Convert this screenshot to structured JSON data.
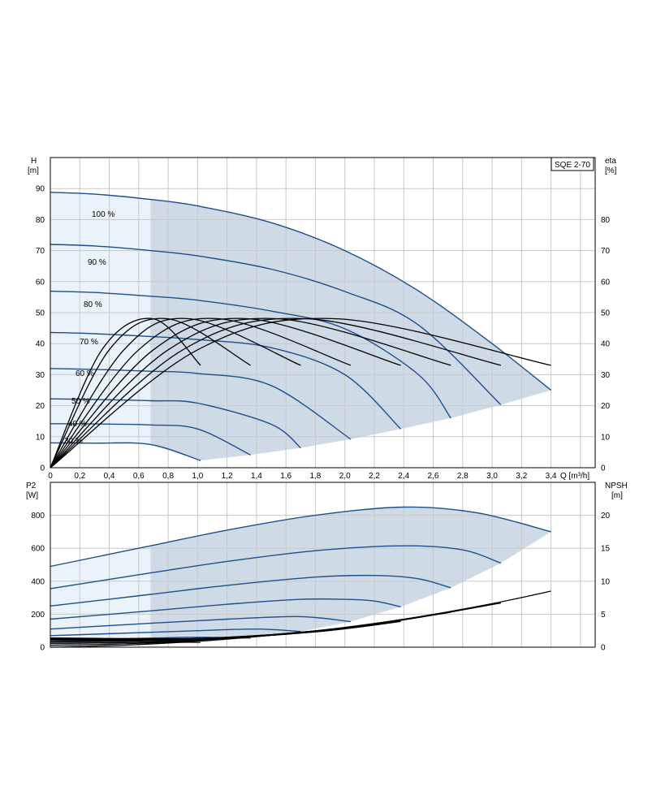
{
  "chart_data": [
    {
      "type": "line",
      "panel": "head-efficiency",
      "title": "SQE 2-70",
      "x_label": "Q [m³/h]",
      "y_left_label": [
        "H",
        "[m]"
      ],
      "y_right_label": [
        "eta",
        "[%]"
      ],
      "xlim": [
        0,
        3.7
      ],
      "ylim_left": [
        0,
        100
      ],
      "ylim_right": [
        0,
        100
      ],
      "x_ticks": [
        "0",
        "0,2",
        "0,4",
        "0,6",
        "0,8",
        "1,0",
        "1,2",
        "1,4",
        "1,6",
        "1,8",
        "2,0",
        "2,2",
        "2,4",
        "2,6",
        "2,8",
        "3,0",
        "3,2",
        "3,4"
      ],
      "y_left_ticks": [
        "0",
        "10",
        "20",
        "30",
        "40",
        "50",
        "60",
        "70",
        "80",
        "90"
      ],
      "y_right_ticks": [
        "0",
        "10",
        "20",
        "30",
        "40",
        "50",
        "60",
        "70",
        "80"
      ],
      "light_region_qmax": 0.68,
      "head_series": [
        {
          "name": "100 %",
          "x": [
            0,
            0.3,
            0.68,
            1.0,
            1.5,
            2.0,
            2.5,
            3.0,
            3.4
          ],
          "y": [
            88.8,
            88.2,
            86.5,
            84.4,
            79.0,
            70.0,
            57.0,
            40.0,
            25.0
          ]
        },
        {
          "name": "90 %",
          "x": [
            0,
            0.3,
            0.68,
            1.0,
            1.5,
            2.0,
            2.5,
            3.06
          ],
          "y": [
            72.0,
            71.5,
            70.0,
            68.3,
            64.0,
            56.8,
            46.0,
            20.3
          ]
        },
        {
          "name": "80 %",
          "x": [
            0,
            0.3,
            0.68,
            1.0,
            1.5,
            2.0,
            2.5,
            2.72
          ],
          "y": [
            56.9,
            56.5,
            55.3,
            54.0,
            50.5,
            44.8,
            30.0,
            16.0
          ]
        },
        {
          "name": "70 %",
          "x": [
            0,
            0.3,
            0.68,
            1.0,
            1.5,
            2.0,
            2.38
          ],
          "y": [
            43.6,
            43.2,
            42.3,
            41.3,
            38.7,
            30.0,
            12.5
          ]
        },
        {
          "name": "60 %",
          "x": [
            0,
            0.3,
            0.68,
            1.0,
            1.5,
            2.04
          ],
          "y": [
            32.0,
            31.7,
            31.1,
            30.4,
            26.5,
            9.2
          ]
        },
        {
          "name": "50 %",
          "x": [
            0,
            0.3,
            0.68,
            1.0,
            1.5,
            1.7
          ],
          "y": [
            22.2,
            22.0,
            21.6,
            20.8,
            14.0,
            6.4
          ]
        },
        {
          "name": "40 %",
          "x": [
            0,
            0.3,
            0.68,
            1.0,
            1.36
          ],
          "y": [
            14.2,
            14.1,
            13.8,
            12.5,
            4.1
          ]
        },
        {
          "name": "30 %",
          "x": [
            0,
            0.3,
            0.68,
            1.02
          ],
          "y": [
            8.0,
            7.9,
            7.5,
            2.3
          ]
        }
      ],
      "efficiency_series": [
        {
          "x": [
            0,
            0.35,
            0.7,
            1.02
          ],
          "y": [
            0,
            38,
            48,
            33
          ]
        },
        {
          "x": [
            0,
            0.4,
            0.8,
            1.36
          ],
          "y": [
            0,
            38,
            48,
            33
          ]
        },
        {
          "x": [
            0,
            0.5,
            0.95,
            1.7
          ],
          "y": [
            0,
            38,
            48,
            33
          ]
        },
        {
          "x": [
            0,
            0.6,
            1.15,
            2.04
          ],
          "y": [
            0,
            38,
            48,
            33
          ]
        },
        {
          "x": [
            0,
            0.7,
            1.35,
            2.38
          ],
          "y": [
            0,
            38,
            48,
            33
          ]
        },
        {
          "x": [
            0,
            0.8,
            1.55,
            2.72
          ],
          "y": [
            0,
            38,
            48,
            33
          ]
        },
        {
          "x": [
            0,
            0.9,
            1.75,
            3.06
          ],
          "y": [
            0,
            38,
            48,
            33
          ]
        },
        {
          "x": [
            0,
            1.0,
            1.95,
            3.4
          ],
          "y": [
            0,
            38,
            48,
            33
          ]
        }
      ]
    },
    {
      "type": "line",
      "panel": "power-npsh",
      "x_label": "",
      "y_left_label": [
        "P2",
        "[W]"
      ],
      "y_right_label": [
        "NPSH",
        "[m]"
      ],
      "xlim": [
        0,
        3.7
      ],
      "ylim_left": [
        0,
        1000
      ],
      "ylim_right": [
        0,
        25
      ],
      "y_left_ticks": [
        "0",
        "200",
        "400",
        "600",
        "800"
      ],
      "y_right_ticks": [
        "0",
        "5",
        "10",
        "15",
        "20"
      ],
      "power_series": [
        {
          "name": "100 %",
          "x": [
            0,
            0.68,
            1.2,
            1.8,
            2.4,
            2.9,
            3.4
          ],
          "y": [
            490,
            615,
            710,
            800,
            850,
            815,
            700
          ]
        },
        {
          "name": "90 %",
          "x": [
            0,
            0.68,
            1.2,
            1.8,
            2.4,
            2.8,
            3.06
          ],
          "y": [
            355,
            450,
            520,
            585,
            615,
            590,
            510
          ]
        },
        {
          "name": "80 %",
          "x": [
            0,
            0.68,
            1.2,
            1.8,
            2.2,
            2.5,
            2.72
          ],
          "y": [
            250,
            320,
            375,
            425,
            435,
            415,
            360
          ]
        },
        {
          "name": "70 %",
          "x": [
            0,
            0.68,
            1.2,
            1.7,
            2.0,
            2.2,
            2.38
          ],
          "y": [
            170,
            220,
            260,
            290,
            290,
            280,
            245
          ]
        },
        {
          "name": "60 %",
          "x": [
            0,
            0.68,
            1.2,
            1.6,
            1.8,
            2.04
          ],
          "y": [
            110,
            145,
            170,
            185,
            180,
            155
          ]
        },
        {
          "name": "50 %",
          "x": [
            0,
            0.68,
            1.0,
            1.4,
            1.7
          ],
          "y": [
            70,
            90,
            100,
            110,
            95
          ]
        },
        {
          "name": "40 %",
          "x": [
            0,
            0.68,
            1.0,
            1.36
          ],
          "y": [
            40,
            55,
            60,
            55
          ]
        },
        {
          "name": "30 %",
          "x": [
            0,
            0.68,
            1.02
          ],
          "y": [
            22,
            30,
            28
          ]
        }
      ],
      "npsh_series": [
        {
          "x": [
            0,
            0.5,
            1.0,
            1.5,
            2.0,
            2.5,
            3.0,
            3.4
          ],
          "y": [
            0,
            0.3,
            0.9,
            1.8,
            3.0,
            4.6,
            6.6,
            8.5
          ]
        },
        {
          "x": [
            0,
            0.5,
            1.0,
            1.5,
            2.0,
            2.5,
            3.06
          ],
          "y": [
            0.3,
            0.5,
            1.0,
            1.8,
            2.9,
            4.5,
            6.7
          ]
        },
        {
          "x": [
            0,
            0.5,
            1.0,
            1.5,
            2.0,
            2.72
          ],
          "y": [
            0.6,
            0.7,
            1.1,
            1.8,
            2.8,
            5.3
          ]
        },
        {
          "x": [
            0,
            0.5,
            1.0,
            1.5,
            2.0,
            2.38
          ],
          "y": [
            0.8,
            0.9,
            1.2,
            1.8,
            2.8,
            3.9
          ]
        },
        {
          "x": [
            0,
            0.5,
            1.0,
            1.5,
            2.04
          ],
          "y": [
            1.0,
            1.0,
            1.3,
            1.9,
            3.0
          ]
        },
        {
          "x": [
            0,
            0.5,
            1.0,
            1.5,
            1.7
          ],
          "y": [
            1.2,
            1.1,
            1.3,
            1.9,
            2.3
          ]
        },
        {
          "x": [
            0,
            0.5,
            1.0,
            1.36
          ],
          "y": [
            1.3,
            1.2,
            1.3,
            1.6
          ]
        },
        {
          "x": [
            0,
            0.5,
            1.02
          ],
          "y": [
            1.4,
            1.3,
            1.3
          ]
        }
      ]
    }
  ],
  "colors": {
    "curve_blue": "#1f4e8c",
    "fill_blue": "#cfdae7",
    "fill_light": "#eaf2fb",
    "grid": "#c8c8c8"
  }
}
